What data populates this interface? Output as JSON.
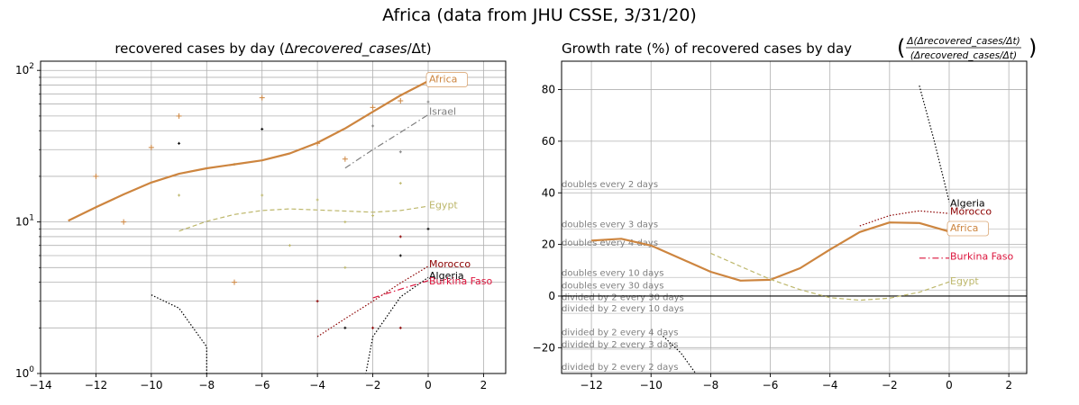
{
  "figure_title": "Africa (data from JHU CSSE, 3/31/20)",
  "chart_data": [
    {
      "type": "line",
      "title": "recovered cases by day (Δrecovered_cases/Δt)",
      "title_parts": [
        "recovered cases by day (Δ",
        "recovered_cases",
        "/Δt)"
      ],
      "y_scale": "log",
      "xlim": [
        -14,
        2.8
      ],
      "ylim": [
        1,
        115
      ],
      "x_ticks": [
        -14,
        -12,
        -10,
        -8,
        -6,
        -4,
        -2,
        0,
        2
      ],
      "x_tick_labels": [
        "−14",
        "−12",
        "−10",
        "−8",
        "−6",
        "−4",
        "−2",
        "0",
        "2"
      ],
      "y_ticks": [
        1,
        10,
        100
      ],
      "y_tick_labels": [
        "10^0",
        "10^1",
        "10^2"
      ],
      "grid": true,
      "series": [
        {
          "name": "Africa",
          "color": "#cd853f",
          "style": "solid",
          "width": 2.2,
          "x": [
            -13,
            -12,
            -11,
            -10,
            -9,
            -8,
            -7,
            -6,
            -5,
            -4,
            -3,
            -2,
            -1,
            0
          ],
          "y": [
            10.2,
            12.5,
            15.2,
            18.2,
            20.8,
            22.6,
            24,
            25.5,
            28.3,
            33.3,
            41.4,
            53.3,
            68.4,
            85
          ]
        },
        {
          "name": "Israel",
          "color": "#808080",
          "style": "dashdot",
          "width": 1.2,
          "x": [
            -3,
            -2,
            -1,
            0
          ],
          "y": [
            22.7,
            30,
            39,
            51
          ]
        },
        {
          "name": "Egypt",
          "color": "#bdb76b",
          "style": "dashed",
          "width": 1.2,
          "x": [
            -9,
            -8,
            -7,
            -6,
            -5,
            -4,
            -3,
            -2,
            -1,
            0
          ],
          "y": [
            8.7,
            10.1,
            11.2,
            11.9,
            12.2,
            12.0,
            11.8,
            11.6,
            11.9,
            12.7
          ]
        },
        {
          "name": "Morocco",
          "color": "#8b0000",
          "style": "dotted",
          "width": 1.2,
          "x": [
            -4,
            -3,
            -2,
            -1,
            0
          ],
          "y": [
            1.75,
            2.3,
            3.0,
            3.95,
            5.1
          ]
        },
        {
          "name": "Algeria",
          "color": "#000000",
          "style": "dotted",
          "width": 1.2,
          "segments": [
            {
              "x": [
                -10,
                -9,
                -8,
                -8
              ],
              "y": [
                3.3,
                2.7,
                1.5,
                0.9
              ]
            },
            {
              "x": [
                -2.3,
                -2,
                -1,
                0
              ],
              "y": [
                0.9,
                1.75,
                3.2,
                4.3
              ]
            }
          ]
        },
        {
          "name": "Burkina Faso",
          "color": "#dc143c",
          "style": "dashdot",
          "width": 1.2,
          "x": [
            -2,
            -1,
            0
          ],
          "y": [
            3.15,
            3.6,
            4.1
          ]
        }
      ],
      "scatter_points": [
        {
          "x": -12,
          "y": 20,
          "color": "#cd853f",
          "size": 6
        },
        {
          "x": -11,
          "y": 10,
          "color": "#cd853f",
          "size": 6
        },
        {
          "x": -10,
          "y": 31,
          "color": "#cd853f",
          "size": 6
        },
        {
          "x": -9,
          "y": 50,
          "color": "#cd853f",
          "size": 6
        },
        {
          "x": -7,
          "y": 4,
          "color": "#cd853f",
          "size": 6
        },
        {
          "x": -6,
          "y": 66,
          "color": "#cd853f",
          "size": 6
        },
        {
          "x": -4,
          "y": 33,
          "color": "#cd853f",
          "size": 6
        },
        {
          "x": -3,
          "y": 26,
          "color": "#cd853f",
          "size": 6
        },
        {
          "x": -2,
          "y": 57,
          "color": "#cd853f",
          "size": 6
        },
        {
          "x": -1,
          "y": 63,
          "color": "#cd853f",
          "size": 6
        },
        {
          "x": -9,
          "y": 33,
          "color": "#000000",
          "size": 3
        },
        {
          "x": -6,
          "y": 41,
          "color": "#000000",
          "size": 3
        },
        {
          "x": -3,
          "y": 2,
          "color": "#000000",
          "size": 3
        },
        {
          "x": -2,
          "y": 2,
          "color": "#8b0000",
          "size": 3
        },
        {
          "x": -1,
          "y": 2,
          "color": "#8b0000",
          "size": 3
        },
        {
          "x": -4,
          "y": 3,
          "color": "#8b0000",
          "size": 3
        },
        {
          "x": -1,
          "y": 6,
          "color": "#000000",
          "size": 3
        },
        {
          "x": -1,
          "y": 8,
          "color": "#8b0000",
          "size": 3
        },
        {
          "x": 0,
          "y": 9,
          "color": "#000000",
          "size": 3
        },
        {
          "x": -1,
          "y": 29,
          "color": "#808080",
          "size": 3
        },
        {
          "x": -2,
          "y": 43,
          "color": "#808080",
          "size": 3
        },
        {
          "x": 0,
          "y": 62,
          "color": "#808080",
          "size": 3
        },
        {
          "x": -9,
          "y": 15,
          "color": "#bdb76b",
          "size": 3
        },
        {
          "x": -7,
          "y": 24,
          "color": "#bdb76b",
          "size": 3
        },
        {
          "x": -6,
          "y": 15,
          "color": "#bdb76b",
          "size": 3
        },
        {
          "x": -5,
          "y": 7,
          "color": "#bdb76b",
          "size": 3
        },
        {
          "x": -4,
          "y": 14,
          "color": "#bdb76b",
          "size": 3
        },
        {
          "x": -3,
          "y": 5,
          "color": "#bdb76b",
          "size": 3
        },
        {
          "x": -3,
          "y": 10,
          "color": "#bdb76b",
          "size": 3
        },
        {
          "x": -2,
          "y": 11,
          "color": "#bdb76b",
          "size": 3
        },
        {
          "x": -1,
          "y": 18,
          "color": "#bdb76b",
          "size": 3
        }
      ],
      "labels": [
        {
          "text": "Africa",
          "x": 0,
          "y": 88,
          "color": "#cd853f",
          "boxed": true
        },
        {
          "text": "Israel",
          "x": 0,
          "y": 54,
          "color": "#808080",
          "boxed": false
        },
        {
          "text": "Egypt",
          "x": 0,
          "y": 13,
          "color": "#bdb76b",
          "boxed": false
        },
        {
          "text": "Morocco",
          "x": 0,
          "y": 5.3,
          "color": "#8b0000",
          "boxed": false
        },
        {
          "text": "Algeria",
          "x": 0,
          "y": 4.45,
          "color": "#000000",
          "boxed": false
        },
        {
          "text": "Burkina Faso",
          "x": 0,
          "y": 4.1,
          "color": "#dc143c",
          "boxed": false
        }
      ]
    },
    {
      "type": "line",
      "title": "Growth rate (%) of recovered cases by day",
      "title_formula_num": "Δ(Δrecovered_cases/Δt)",
      "title_formula_den": "(Δrecovered_cases/Δt)",
      "xlim": [
        -13,
        2.6
      ],
      "ylim": [
        -30,
        91
      ],
      "x_ticks": [
        -12,
        -10,
        -8,
        -6,
        -4,
        -2,
        0,
        2
      ],
      "x_tick_labels": [
        "−12",
        "−10",
        "−8",
        "−6",
        "−4",
        "−2",
        "0",
        "2"
      ],
      "y_ticks": [
        -20,
        0,
        20,
        40,
        60,
        80
      ],
      "y_tick_labels": [
        "−20",
        "0",
        "20",
        "40",
        "60",
        "80"
      ],
      "grid": true,
      "reference_lines": [
        {
          "label": "doubles every 2 days",
          "y": 41.4
        },
        {
          "label": "doubles every 3 days",
          "y": 26.0
        },
        {
          "label": "doubles every 4 days",
          "y": 18.9
        },
        {
          "label": "doubles every 10 days",
          "y": 7.2
        },
        {
          "label": "doubles every 30 days",
          "y": 2.3
        },
        {
          "label": "divided by 2 every 30 days",
          "y": -2.3
        },
        {
          "label": "divided by 2 every 10 days",
          "y": -6.7
        },
        {
          "label": "divided by 2 every 4 days",
          "y": -15.9
        },
        {
          "label": "divided by 2 every 3 days",
          "y": -20.6
        },
        {
          "label": "divided by 2 every 2 days",
          "y": -29.3
        }
      ],
      "series": [
        {
          "name": "Africa",
          "color": "#cd853f",
          "style": "solid",
          "width": 2.2,
          "x": [
            -12,
            -11,
            -10,
            -9,
            -8,
            -7,
            -6,
            -5,
            -4,
            -3,
            -2,
            -1,
            0
          ],
          "y": [
            21.5,
            22.2,
            19.6,
            14.5,
            9.4,
            6.0,
            6.3,
            10.8,
            18.0,
            24.8,
            28.5,
            28.3,
            25.0
          ]
        },
        {
          "name": "Egypt",
          "color": "#bdb76b",
          "style": "dashed",
          "width": 1.2,
          "x": [
            -8,
            -7,
            -6,
            -5,
            -4,
            -3,
            -2,
            -1,
            0
          ],
          "y": [
            16.6,
            11.5,
            6.5,
            2.5,
            -0.6,
            -1.6,
            -0.8,
            1.5,
            5.5
          ]
        },
        {
          "name": "Morocco",
          "color": "#8b0000",
          "style": "dotted",
          "width": 1.2,
          "x": [
            -3,
            -2,
            -1,
            0
          ],
          "y": [
            27.2,
            31.2,
            33.0,
            32.0
          ]
        },
        {
          "name": "Algeria",
          "color": "#000000",
          "style": "dotted",
          "width": 1.2,
          "segments": [
            {
              "x": [
                -1,
                -0.5,
                0
              ],
              "y": [
                81.5,
                60,
                36.5
              ]
            },
            {
              "x": [
                -9.6,
                -9,
                -8.5
              ],
              "y": [
                -15.5,
                -22,
                -30
              ]
            }
          ]
        },
        {
          "name": "Burkina Faso",
          "color": "#dc143c",
          "style": "dashdot",
          "width": 1.2,
          "x": [
            -1,
            0
          ],
          "y": [
            14.7,
            14.7
          ]
        }
      ],
      "labels": [
        {
          "text": "Algeria",
          "x": 0,
          "y": 36.0,
          "color": "#000000",
          "boxed": false
        },
        {
          "text": "Morocco",
          "x": 0,
          "y": 33.0,
          "color": "#8b0000",
          "boxed": false
        },
        {
          "text": "Africa",
          "x": 0,
          "y": 26.5,
          "color": "#cd853f",
          "boxed": true
        },
        {
          "text": "Burkina Faso",
          "x": 0,
          "y": 15.5,
          "color": "#dc143c",
          "boxed": false
        },
        {
          "text": "Egypt",
          "x": 0,
          "y": 6.0,
          "color": "#bdb76b",
          "boxed": false
        }
      ]
    }
  ]
}
